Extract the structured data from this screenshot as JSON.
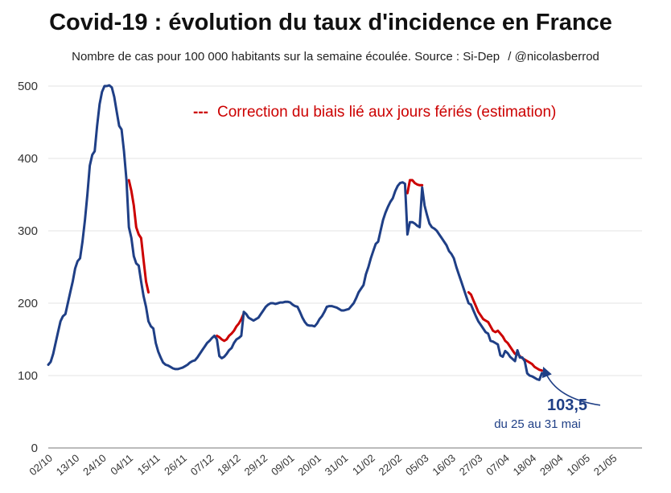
{
  "header": {
    "title": "Covid-19 : évolution du taux d'incidence en France",
    "subtitle": "Nombre de cas pour 100 000 habitants sur la semaine écoulée. Source : Si-Dep",
    "credit": "/ @nicolasberrod"
  },
  "colors": {
    "main_line": "#1f3f86",
    "correction_line": "#cc0000",
    "grid": "#e3e3e3"
  },
  "chart_data": {
    "type": "line",
    "title": "Covid-19 : évolution du taux d'incidence en France",
    "subtitle": "Nombre de cas pour 100 000 habitants sur la semaine écoulée. Source : Si-Dep / @nicolasberrod",
    "xlabel": "",
    "ylabel": "",
    "ylim": [
      0,
      500
    ],
    "y_ticks": [
      0,
      100,
      200,
      300,
      400,
      500
    ],
    "grid": true,
    "x_range": [
      0,
      243
    ],
    "x_ticks": [
      {
        "label": "02/10",
        "day": 0
      },
      {
        "label": "13/10",
        "day": 11
      },
      {
        "label": "24/10",
        "day": 22
      },
      {
        "label": "04/11",
        "day": 33
      },
      {
        "label": "15/11",
        "day": 44
      },
      {
        "label": "26/11",
        "day": 55
      },
      {
        "label": "07/12",
        "day": 66
      },
      {
        "label": "18/12",
        "day": 77
      },
      {
        "label": "29/12",
        "day": 88
      },
      {
        "label": "09/01",
        "day": 99
      },
      {
        "label": "20/01",
        "day": 110
      },
      {
        "label": "31/01",
        "day": 121
      },
      {
        "label": "11/02",
        "day": 132
      },
      {
        "label": "22/02",
        "day": 143
      },
      {
        "label": "05/03",
        "day": 154
      },
      {
        "label": "16/03",
        "day": 165
      },
      {
        "label": "27/03",
        "day": 176
      },
      {
        "label": "07/04",
        "day": 187
      },
      {
        "label": "18/04",
        "day": 198
      },
      {
        "label": "29/04",
        "day": 209
      },
      {
        "label": "10/05",
        "day": 220
      },
      {
        "label": "21/05",
        "day": 231
      }
    ],
    "series": [
      {
        "name": "Taux d'incidence",
        "color": "#1f3f86",
        "points": [
          [
            0,
            115
          ],
          [
            1,
            119
          ],
          [
            2,
            130
          ],
          [
            3,
            145
          ],
          [
            4,
            160
          ],
          [
            5,
            175
          ],
          [
            6,
            182
          ],
          [
            7,
            185
          ],
          [
            8,
            200
          ],
          [
            9,
            215
          ],
          [
            10,
            230
          ],
          [
            11,
            248
          ],
          [
            12,
            258
          ],
          [
            13,
            262
          ],
          [
            14,
            285
          ],
          [
            15,
            315
          ],
          [
            16,
            350
          ],
          [
            17,
            390
          ],
          [
            18,
            405
          ],
          [
            19,
            410
          ],
          [
            20,
            445
          ],
          [
            21,
            475
          ],
          [
            22,
            492
          ],
          [
            23,
            500
          ],
          [
            24,
            500
          ],
          [
            25,
            501
          ],
          [
            26,
            498
          ],
          [
            27,
            485
          ],
          [
            28,
            465
          ],
          [
            29,
            445
          ],
          [
            30,
            440
          ],
          [
            31,
            410
          ],
          [
            32,
            370
          ],
          [
            33,
            305
          ],
          [
            34,
            290
          ],
          [
            35,
            265
          ],
          [
            36,
            255
          ],
          [
            37,
            252
          ],
          [
            38,
            230
          ],
          [
            39,
            210
          ],
          [
            40,
            195
          ],
          [
            41,
            175
          ],
          [
            42,
            168
          ],
          [
            43,
            165
          ],
          [
            44,
            145
          ],
          [
            45,
            133
          ],
          [
            46,
            125
          ],
          [
            47,
            118
          ],
          [
            48,
            115
          ],
          [
            49,
            114
          ],
          [
            50,
            112
          ],
          [
            51,
            110
          ],
          [
            52,
            109
          ],
          [
            53,
            109
          ],
          [
            54,
            110
          ],
          [
            55,
            111
          ],
          [
            56,
            113
          ],
          [
            57,
            115
          ],
          [
            58,
            118
          ],
          [
            59,
            120
          ],
          [
            60,
            121
          ],
          [
            61,
            125
          ],
          [
            62,
            130
          ],
          [
            63,
            135
          ],
          [
            64,
            140
          ],
          [
            65,
            145
          ],
          [
            66,
            148
          ],
          [
            67,
            152
          ],
          [
            68,
            155
          ],
          [
            69,
            150
          ],
          [
            70,
            127
          ],
          [
            71,
            124
          ],
          [
            72,
            126
          ],
          [
            73,
            130
          ],
          [
            74,
            135
          ],
          [
            75,
            138
          ],
          [
            76,
            145
          ],
          [
            77,
            150
          ],
          [
            78,
            152
          ],
          [
            79,
            155
          ],
          [
            80,
            188
          ],
          [
            81,
            185
          ],
          [
            82,
            180
          ],
          [
            83,
            178
          ],
          [
            84,
            176
          ],
          [
            85,
            178
          ],
          [
            86,
            180
          ],
          [
            87,
            185
          ],
          [
            88,
            190
          ],
          [
            89,
            195
          ],
          [
            90,
            198
          ],
          [
            91,
            200
          ],
          [
            92,
            200
          ],
          [
            93,
            199
          ],
          [
            94,
            200
          ],
          [
            95,
            201
          ],
          [
            96,
            201
          ],
          [
            97,
            202
          ],
          [
            98,
            202
          ],
          [
            99,
            201
          ],
          [
            100,
            198
          ],
          [
            101,
            196
          ],
          [
            102,
            195
          ],
          [
            103,
            188
          ],
          [
            104,
            180
          ],
          [
            105,
            174
          ],
          [
            106,
            170
          ],
          [
            107,
            169
          ],
          [
            108,
            169
          ],
          [
            109,
            168
          ],
          [
            110,
            172
          ],
          [
            111,
            178
          ],
          [
            112,
            182
          ],
          [
            113,
            188
          ],
          [
            114,
            195
          ],
          [
            115,
            196
          ],
          [
            116,
            196
          ],
          [
            117,
            195
          ],
          [
            118,
            194
          ],
          [
            119,
            192
          ],
          [
            120,
            190
          ],
          [
            121,
            190
          ],
          [
            122,
            191
          ],
          [
            123,
            192
          ],
          [
            124,
            196
          ],
          [
            125,
            200
          ],
          [
            126,
            207
          ],
          [
            127,
            215
          ],
          [
            128,
            220
          ],
          [
            129,
            225
          ],
          [
            130,
            240
          ],
          [
            131,
            250
          ],
          [
            132,
            262
          ],
          [
            133,
            272
          ],
          [
            134,
            282
          ],
          [
            135,
            285
          ],
          [
            136,
            300
          ],
          [
            137,
            315
          ],
          [
            138,
            325
          ],
          [
            139,
            333
          ],
          [
            140,
            340
          ],
          [
            141,
            345
          ],
          [
            142,
            355
          ],
          [
            143,
            362
          ],
          [
            144,
            366
          ],
          [
            145,
            367
          ],
          [
            146,
            365
          ],
          [
            147,
            295
          ],
          [
            148,
            312
          ],
          [
            149,
            312
          ],
          [
            150,
            310
          ],
          [
            151,
            307
          ],
          [
            152,
            305
          ],
          [
            153,
            360
          ],
          [
            154,
            335
          ],
          [
            155,
            322
          ],
          [
            156,
            310
          ],
          [
            157,
            305
          ],
          [
            158,
            303
          ],
          [
            159,
            300
          ],
          [
            160,
            295
          ],
          [
            161,
            290
          ],
          [
            162,
            285
          ],
          [
            163,
            280
          ],
          [
            164,
            272
          ],
          [
            165,
            268
          ],
          [
            166,
            262
          ],
          [
            167,
            250
          ],
          [
            168,
            240
          ],
          [
            169,
            230
          ],
          [
            170,
            220
          ],
          [
            171,
            210
          ],
          [
            172,
            200
          ],
          [
            173,
            198
          ],
          [
            174,
            190
          ],
          [
            175,
            182
          ],
          [
            176,
            175
          ],
          [
            177,
            170
          ],
          [
            178,
            165
          ],
          [
            179,
            160
          ],
          [
            180,
            158
          ],
          [
            181,
            148
          ],
          [
            182,
            147
          ],
          [
            183,
            145
          ],
          [
            184,
            143
          ],
          [
            185,
            128
          ],
          [
            186,
            126
          ],
          [
            187,
            134
          ],
          [
            188,
            131
          ],
          [
            189,
            126
          ],
          [
            190,
            123
          ],
          [
            191,
            120
          ],
          [
            192,
            135
          ],
          [
            193,
            125
          ],
          [
            194,
            125
          ],
          [
            195,
            120
          ],
          [
            196,
            103
          ],
          [
            197,
            100
          ],
          [
            198,
            99
          ],
          [
            199,
            97
          ],
          [
            200,
            95
          ],
          [
            201,
            94
          ],
          [
            202,
            103.5
          ]
        ]
      },
      {
        "name": "Correction du biais lié aux jours fériés (estimation)",
        "style": "dashed-legend",
        "color": "#cc0000",
        "segments": [
          [
            [
              33,
              370
            ],
            [
              34,
              355
            ],
            [
              35,
              335
            ],
            [
              36,
              305
            ],
            [
              37,
              295
            ],
            [
              38,
              290
            ],
            [
              39,
              260
            ],
            [
              40,
              230
            ],
            [
              41,
              215
            ]
          ],
          [
            [
              69,
              155
            ],
            [
              70,
              153
            ],
            [
              71,
              150
            ],
            [
              72,
              148
            ],
            [
              73,
              150
            ],
            [
              74,
              155
            ],
            [
              75,
              158
            ],
            [
              76,
              162
            ],
            [
              77,
              168
            ],
            [
              78,
              172
            ],
            [
              79,
              178
            ],
            [
              80,
              186
            ]
          ],
          [
            [
              147,
              352
            ],
            [
              148,
              370
            ],
            [
              149,
              370
            ],
            [
              150,
              366
            ],
            [
              151,
              364
            ],
            [
              152,
              363
            ],
            [
              153,
              363
            ]
          ],
          [
            [
              172,
              215
            ],
            [
              173,
              212
            ],
            [
              174,
              204
            ],
            [
              175,
              196
            ],
            [
              176,
              188
            ],
            [
              177,
              183
            ],
            [
              178,
              178
            ],
            [
              179,
              176
            ],
            [
              180,
              174
            ],
            [
              181,
              168
            ],
            [
              182,
              162
            ],
            [
              183,
              160
            ],
            [
              184,
              162
            ],
            [
              185,
              158
            ],
            [
              186,
              154
            ],
            [
              187,
              148
            ],
            [
              188,
              145
            ],
            [
              189,
              140
            ],
            [
              190,
              135
            ],
            [
              191,
              130
            ],
            [
              192,
              130
            ],
            [
              193,
              127
            ],
            [
              194,
              124
            ],
            [
              195,
              122
            ],
            [
              196,
              120
            ],
            [
              197,
              118
            ],
            [
              198,
              116
            ],
            [
              199,
              112
            ],
            [
              200,
              110
            ],
            [
              201,
              108
            ],
            [
              202,
              107
            ]
          ]
        ]
      }
    ],
    "legend": [
      {
        "marker": "---",
        "label": "Correction du biais lié aux jours fériés (estimation)",
        "color": "#cc0000"
      }
    ],
    "annotation": {
      "value": "103,5",
      "text": "du 25 au 31 mai",
      "points_to_day": 202,
      "points_to_value": 103.5
    }
  }
}
